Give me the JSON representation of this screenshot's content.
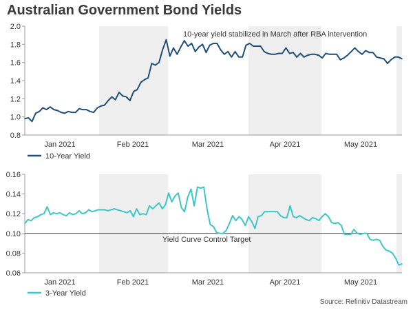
{
  "title": "Australian Government Bond Yields",
  "source": "Source: Refinitiv Datastream",
  "colors": {
    "series1": "#1f4e79",
    "series2": "#3cc7c7",
    "shade": "#efefef",
    "axis": "#9a9a9a",
    "ref_line": "#333333"
  },
  "chart_data": [
    {
      "type": "line",
      "title": "",
      "series": [
        {
          "name": "10-Year Yield",
          "values": [
            0.98,
            0.99,
            0.95,
            1.04,
            1.06,
            1.1,
            1.08,
            1.11,
            1.08,
            1.07,
            1.05,
            1.04,
            1.06,
            1.05,
            1.05,
            1.09,
            1.08,
            1.08,
            1.06,
            1.05,
            1.1,
            1.12,
            1.13,
            1.18,
            1.22,
            1.19,
            1.27,
            1.23,
            1.22,
            1.18,
            1.28,
            1.3,
            1.38,
            1.41,
            1.43,
            1.59,
            1.57,
            1.6,
            1.74,
            1.85,
            1.67,
            1.76,
            1.69,
            1.77,
            1.84,
            1.78,
            1.81,
            1.72,
            1.77,
            1.8,
            1.71,
            1.79,
            1.81,
            1.81,
            1.74,
            1.69,
            1.72,
            1.66,
            1.72,
            1.66,
            1.66,
            1.79,
            1.81,
            1.78,
            1.78,
            1.78,
            1.72,
            1.7,
            1.69,
            1.69,
            1.7,
            1.7,
            1.76,
            1.7,
            1.71,
            1.66,
            1.7,
            1.66,
            1.68,
            1.69,
            1.69,
            1.68,
            1.65,
            1.7,
            1.69,
            1.69,
            1.69,
            1.63,
            1.65,
            1.68,
            1.72,
            1.76,
            1.72,
            1.69,
            1.73,
            1.71,
            1.71,
            1.66,
            1.65,
            1.64,
            1.59,
            1.63,
            1.66,
            1.66,
            1.64
          ]
        }
      ],
      "x_tick_labels": [
        "Jan 2021",
        "Feb 2021",
        "Mar 2021",
        "Apr 2021",
        "May 2021"
      ],
      "ylim": [
        0.8,
        2.0
      ],
      "yticks": [
        "0.8",
        "1.0",
        "1.2",
        "1.4",
        "1.6",
        "1.8",
        "2.0"
      ],
      "annotation": "10-year yield stabilized in March after RBA intervention",
      "legend": "bottom-left"
    },
    {
      "type": "line",
      "title": "",
      "series": [
        {
          "name": "3-Year Yield",
          "values": [
            0.11,
            0.114,
            0.113,
            0.116,
            0.117,
            0.119,
            0.12,
            0.127,
            0.119,
            0.121,
            0.12,
            0.121,
            0.119,
            0.118,
            0.121,
            0.119,
            0.12,
            0.123,
            0.12,
            0.121,
            0.124,
            0.122,
            0.123,
            0.124,
            0.124,
            0.124,
            0.123,
            0.124,
            0.125,
            0.124,
            0.123,
            0.122,
            0.121,
            0.123,
            0.117,
            0.125,
            0.119,
            0.12,
            0.119,
            0.128,
            0.125,
            0.128,
            0.131,
            0.125,
            0.129,
            0.141,
            0.132,
            0.138,
            0.141,
            0.126,
            0.122,
            0.137,
            0.145,
            0.128,
            0.147,
            0.146,
            0.147,
            0.125,
            0.109,
            0.107,
            0.101,
            0.1,
            0.1,
            0.103,
            0.11,
            0.118,
            0.113,
            0.117,
            0.114,
            0.108,
            0.117,
            0.112,
            0.105,
            0.117,
            0.118,
            0.122,
            0.122,
            0.122,
            0.122,
            0.122,
            0.118,
            0.116,
            0.116,
            0.128,
            0.117,
            0.116,
            0.118,
            0.116,
            0.114,
            0.113,
            0.116,
            0.115,
            0.113,
            0.117,
            0.12,
            0.117,
            0.111,
            0.11,
            0.111,
            0.108,
            0.099,
            0.099,
            0.099,
            0.104,
            0.1,
            0.099,
            0.1,
            0.1,
            0.094,
            0.093,
            0.094,
            0.093,
            0.087,
            0.083,
            0.082,
            0.08,
            0.075,
            0.068,
            0.069
          ]
        }
      ],
      "x_tick_labels": [
        "Jan 2021",
        "Feb 2021",
        "Mar 2021",
        "Apr 2021",
        "May 2021"
      ],
      "ylim": [
        0.06,
        0.16
      ],
      "yticks": [
        "0.06",
        "0.08",
        "0.10",
        "0.12",
        "0.14",
        "0.16"
      ],
      "reference_line": {
        "value": 0.1,
        "label": "Yield Curve Control Target"
      },
      "legend": "bottom-left"
    }
  ]
}
